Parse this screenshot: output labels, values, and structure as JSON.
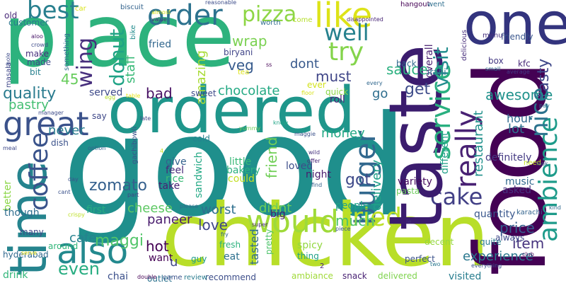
{
  "words": [
    {
      "text": "good",
      "color": "#1f8f8c"
    },
    {
      "text": "place",
      "color": "#2db27d"
    },
    {
      "text": "food",
      "color": "#440154"
    },
    {
      "text": "taste",
      "color": "#3b1c6e"
    },
    {
      "text": "chicken",
      "color": "#b8de29"
    },
    {
      "text": "ordered",
      "color": "#1f968b"
    },
    {
      "text": "one",
      "color": "#33347e"
    },
    {
      "text": "time",
      "color": "#25848e"
    },
    {
      "text": "ambience",
      "color": "#1e9b8a"
    },
    {
      "text": "service",
      "color": "#29af7f"
    },
    {
      "text": "burger",
      "color": "#31688e"
    },
    {
      "text": "really",
      "color": "#482173"
    },
    {
      "text": "would",
      "color": "#9fda3a"
    },
    {
      "text": "great",
      "color": "#3b528b"
    },
    {
      "text": "order",
      "color": "#2c728e"
    },
    {
      "text": "coffee",
      "color": "#3a538b"
    },
    {
      "text": "also",
      "color": "#23898e"
    },
    {
      "text": "pizza",
      "color": "#8ed645"
    },
    {
      "text": "like",
      "color": "#dde318"
    },
    {
      "text": "best",
      "color": "#277f8e"
    },
    {
      "text": "try",
      "color": "#84d44b"
    },
    {
      "text": "well",
      "color": "#26818e"
    },
    {
      "text": "nice",
      "color": "#2c738e"
    },
    {
      "text": "tried",
      "color": "#bddf26"
    },
    {
      "text": "cake",
      "color": "#424086"
    },
    {
      "text": "zomato",
      "color": "#35608d"
    },
    {
      "text": "donut",
      "color": "#20a386"
    },
    {
      "text": "wing",
      "color": "#472f7d"
    },
    {
      "text": "visit",
      "color": "#228d8d"
    },
    {
      "text": "even",
      "color": "#27ad81"
    },
    {
      "text": "tasty",
      "color": "#3f4889"
    },
    {
      "text": "quality",
      "color": "#297b8e"
    },
    {
      "text": "worst",
      "color": "#2e6f8e"
    },
    {
      "text": "love",
      "color": "#3f4788"
    },
    {
      "text": "chocolate",
      "color": "#23a983"
    },
    {
      "text": "restaurant",
      "color": "#21918c"
    },
    {
      "text": "awesome",
      "color": "#20928c"
    },
    {
      "text": "must",
      "color": "#404688"
    },
    {
      "text": "money",
      "color": "#22a884"
    },
    {
      "text": "friend",
      "color": "#71cf57"
    },
    {
      "text": "cheese",
      "color": "#5dc863"
    },
    {
      "text": "delivery",
      "color": "#1fa088"
    },
    {
      "text": "item",
      "color": "#46337e"
    },
    {
      "text": "maggi",
      "color": "#52c569"
    },
    {
      "text": "paneer",
      "color": "#481b6d"
    },
    {
      "text": "experience",
      "color": "#2a788e"
    },
    {
      "text": "price",
      "color": "#355f8d"
    },
    {
      "text": "got",
      "color": "#3e4989"
    },
    {
      "text": "much",
      "color": "#4ac16d"
    },
    {
      "text": "dont",
      "color": "#38598c"
    },
    {
      "text": "bad",
      "color": "#471063"
    },
    {
      "text": "get",
      "color": "#3e4c8a"
    },
    {
      "text": "wrap",
      "color": "#7ad151"
    },
    {
      "text": "veg",
      "color": "#375b8d"
    },
    {
      "text": "go",
      "color": "#2e6e8e"
    },
    {
      "text": "didnt",
      "color": "#6ccd5a"
    },
    {
      "text": "sauce",
      "color": "#2ab07f"
    },
    {
      "text": "pastry",
      "color": "#42be71"
    },
    {
      "text": "never",
      "color": "#287c8e"
    },
    {
      "text": "amazing",
      "color": "#a8db34"
    },
    {
      "text": "staff",
      "color": "#38b977"
    },
    {
      "text": "hot",
      "color": "#440154"
    },
    {
      "text": "cafe",
      "color": "#26828e"
    },
    {
      "text": "served",
      "color": "#3e4a89"
    },
    {
      "text": "45",
      "color": "#67cc5c"
    },
    {
      "text": "lot",
      "color": "#2d718e"
    },
    {
      "text": "hour",
      "color": "#30698e"
    },
    {
      "text": "loved",
      "color": "#3d4d8a"
    },
    {
      "text": "fried",
      "color": "#31678e"
    },
    {
      "text": "tasted",
      "color": "#2f6c8e"
    },
    {
      "text": "people",
      "color": "#1fa187"
    },
    {
      "text": "definitely",
      "color": "#443a83"
    },
    {
      "text": "visited",
      "color": "#287d8e"
    },
    {
      "text": "different",
      "color": "#1fa088"
    },
    {
      "text": "quantity",
      "color": "#39568c"
    },
    {
      "text": "overall",
      "color": "#481f70"
    },
    {
      "text": "variety",
      "color": "#460b5e"
    },
    {
      "text": "roll",
      "color": "#482475"
    },
    {
      "text": "spicy",
      "color": "#93d741"
    },
    {
      "text": "could",
      "color": "#c2df23"
    },
    {
      "text": "first",
      "color": "#26ad81"
    },
    {
      "text": "drink",
      "color": "#32b67a"
    },
    {
      "text": "rice",
      "color": "#3aba76"
    },
    {
      "text": "asked",
      "color": "#46327e"
    },
    {
      "text": "big",
      "color": "#482071"
    },
    {
      "text": "music",
      "color": "#31688e"
    },
    {
      "text": "sandwich",
      "color": "#22a884"
    },
    {
      "text": "night",
      "color": "#481b6d"
    },
    {
      "text": "little",
      "color": "#38b977"
    },
    {
      "text": "give",
      "color": "#34618d"
    },
    {
      "text": "feel",
      "color": "#472a7a"
    },
    {
      "text": "take",
      "color": "#482173"
    },
    {
      "text": "better",
      "color": "#8bd646"
    },
    {
      "text": "though",
      "color": "#2e6d8e"
    },
    {
      "text": "eat",
      "color": "#2d708e"
    },
    {
      "text": "bakery",
      "color": "#2ab07f"
    },
    {
      "text": "irani",
      "color": "#2e6f8e"
    },
    {
      "text": "kfc",
      "color": "#482878"
    },
    {
      "text": "box",
      "color": "#443983"
    },
    {
      "text": "back",
      "color": "#31688e"
    },
    {
      "text": "thing",
      "color": "#1fa188"
    },
    {
      "text": "perfect",
      "color": "#3b528b"
    },
    {
      "text": "pasta",
      "color": "#6ccd5a"
    },
    {
      "text": "quite",
      "color": "#297a8e"
    },
    {
      "text": "always",
      "color": "#3e4a89"
    },
    {
      "text": "sweet",
      "color": "#3e4989"
    },
    {
      "text": "fresh",
      "color": "#2cb17e"
    },
    {
      "text": "want",
      "color": "#440154"
    },
    {
      "text": "guy",
      "color": "#1e9b8a"
    },
    {
      "text": "u",
      "color": "#3f4788"
    },
    {
      "text": "cold",
      "color": "#25838e"
    },
    {
      "text": "hyderabad",
      "color": "#31688e"
    },
    {
      "text": "many",
      "color": "#3e4989"
    },
    {
      "text": "around",
      "color": "#32b67a"
    },
    {
      "text": "chai",
      "color": "#3c508b"
    },
    {
      "text": "decent",
      "color": "#95d840"
    },
    {
      "text": "ambiance",
      "color": "#a0da39"
    },
    {
      "text": "snack",
      "color": "#482173"
    },
    {
      "text": "delivered",
      "color": "#7fd34e"
    },
    {
      "text": "recommend",
      "color": "#3d4e8a"
    },
    {
      "text": "review",
      "color": "#297b8e"
    },
    {
      "text": "outlet",
      "color": "#2c718e"
    },
    {
      "text": "karachi",
      "color": "#33638d"
    },
    {
      "text": "need",
      "color": "#c8e020"
    },
    {
      "text": "friendly",
      "color": "#39568c"
    },
    {
      "text": "menu",
      "color": "#46307e"
    },
    {
      "text": "biryani",
      "color": "#404588"
    },
    {
      "text": "fried2",
      "color": "#31678e"
    },
    {
      "text": "customer",
      "color": "#2a788e"
    },
    {
      "text": "old",
      "color": "#482878"
    },
    {
      "text": "make",
      "color": "#472e7c"
    },
    {
      "text": "made",
      "color": "#3e4a89"
    },
    {
      "text": "bit",
      "color": "#27808e"
    },
    {
      "text": "masala",
      "color": "#3f4788"
    },
    {
      "text": "something",
      "color": "#2e6d8e"
    },
    {
      "text": "hangout",
      "color": "#440154"
    },
    {
      "text": "went",
      "color": "#2e6e8e"
    },
    {
      "text": "delicious",
      "color": "#472d7b"
    },
    {
      "text": "bike",
      "color": "#228c8d"
    },
    {
      "text": "worth",
      "color": "#2f6c8e"
    },
    {
      "text": "dish",
      "color": "#3b528b"
    },
    {
      "text": "car",
      "color": "#dae319"
    },
    {
      "text": "biscuit",
      "color": "#33638d"
    },
    {
      "text": "reasonable",
      "color": "#3d4d8a"
    },
    {
      "text": "come",
      "color": "#b5de2b"
    },
    {
      "text": "disappointed",
      "color": "#482576"
    },
    {
      "text": "ever",
      "color": "#d2e21b"
    },
    {
      "text": "quick",
      "color": "#8bd646"
    },
    {
      "text": "say",
      "color": "#3f4889"
    },
    {
      "text": "gachibowli",
      "color": "#3b528b"
    },
    {
      "text": "yummy",
      "color": "#6ece58"
    },
    {
      "text": "pretty",
      "color": "#4ec36b"
    },
    {
      "text": "fry",
      "color": "#32658e"
    },
    {
      "text": "super",
      "color": "#472c7a"
    },
    {
      "text": "piece",
      "color": "#39568c"
    },
    {
      "text": "two",
      "color": "#2a788e"
    },
    {
      "text": "crispy",
      "color": "#bddf26"
    },
    {
      "text": "please",
      "color": "#2f6b8e"
    },
    {
      "text": "double",
      "color": "#440154"
    },
    {
      "text": "came",
      "color": "#3b528b"
    },
    {
      "text": "serve",
      "color": "#e5e419"
    },
    {
      "text": "everything",
      "color": "#3b528b"
    },
    {
      "text": "club",
      "color": "#46085c"
    },
    {
      "text": "asked2",
      "color": "#481f70"
    },
    {
      "text": "average",
      "color": "#443a83"
    },
    {
      "text": "small",
      "color": "#2f6c8e"
    },
    {
      "text": "pav",
      "color": "#2c738e"
    },
    {
      "text": "kind",
      "color": "#31688e"
    },
    {
      "text": "look",
      "color": "#35608d"
    },
    {
      "text": "floor",
      "color": "#d8e219"
    },
    {
      "text": "table",
      "color": "#e5e419"
    },
    {
      "text": "tea",
      "color": "#dde318"
    },
    {
      "text": "manager",
      "color": "#3e4c8a"
    },
    {
      "text": "late",
      "color": "#404688"
    },
    {
      "text": "know",
      "color": "#20a486"
    },
    {
      "text": "maggie",
      "color": "#3b528b"
    },
    {
      "text": "option",
      "color": "#33638d"
    },
    {
      "text": "offer",
      "color": "#482677"
    },
    {
      "text": "find",
      "color": "#34618d"
    },
    {
      "text": "wild",
      "color": "#46327e"
    },
    {
      "text": "part",
      "color": "#414487"
    },
    {
      "text": "cant",
      "color": "#3b528b"
    },
    {
      "text": "day",
      "color": "#3a548c"
    },
    {
      "text": "meal",
      "color": "#3e4989"
    },
    {
      "text": "chole",
      "color": "#3d4e8a"
    },
    {
      "text": "aloo",
      "color": "#481467"
    },
    {
      "text": "crowd",
      "color": "#3e4c8a"
    },
    {
      "text": "every",
      "color": "#31688e"
    },
    {
      "text": "almost",
      "color": "#d8e219"
    },
    {
      "text": "value",
      "color": "#472a7a"
    },
    {
      "text": "egg",
      "color": "#b5de2b"
    },
    {
      "text": "ss",
      "color": "#440154"
    },
    {
      "text": "le",
      "color": "#46327e"
    },
    {
      "text": "4",
      "color": "#cae11f"
    },
    {
      "text": "2",
      "color": "#482475"
    }
  ]
}
